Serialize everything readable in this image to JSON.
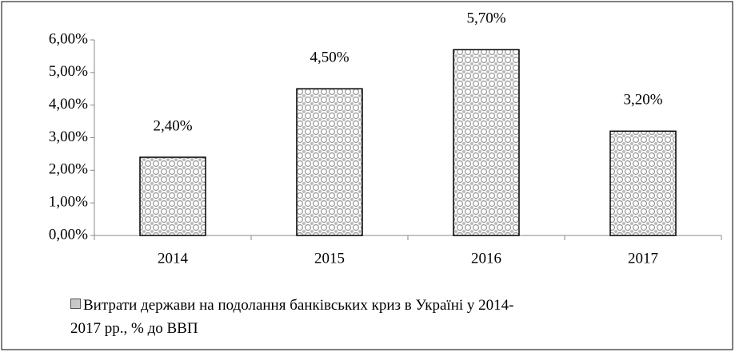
{
  "chart_data": {
    "type": "bar",
    "categories": [
      "2014",
      "2015",
      "2016",
      "2017"
    ],
    "series": [
      {
        "name": "Витрати держави на подолання банківських криз в Україні у 2014-2017 рр., % до ВВП",
        "color": "#c8c8c8",
        "values": [
          2.4,
          4.5,
          5.7,
          3.2
        ],
        "value_labels": [
          "2,40%",
          "4,50%",
          "5,70%",
          "3,20%"
        ]
      }
    ],
    "ylim": [
      0,
      6
    ],
    "yticks": [
      {
        "value": 0,
        "label": "0,00%"
      },
      {
        "value": 1,
        "label": "1,00%"
      },
      {
        "value": 2,
        "label": "2,00%"
      },
      {
        "value": 3,
        "label": "3,00%"
      },
      {
        "value": 4,
        "label": "4,00%"
      },
      {
        "value": 5,
        "label": "5,00%"
      },
      {
        "value": 6,
        "label": "6,00%"
      }
    ],
    "legend": "bottom-left"
  }
}
